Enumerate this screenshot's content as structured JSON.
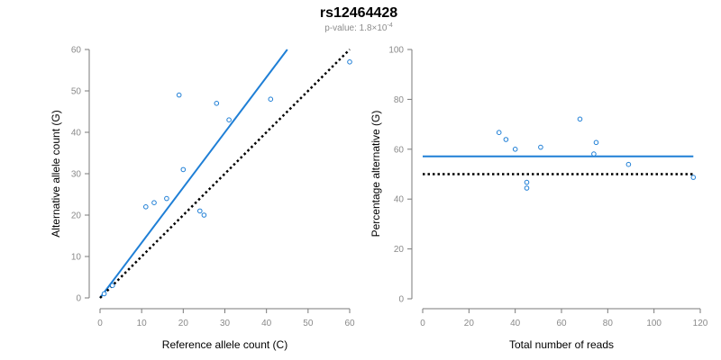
{
  "figure": {
    "title": "rs12464428",
    "subtitle_prefix": "p-value: 1.8×10",
    "subtitle_exponent": "-4",
    "colors": {
      "accent": "#1f7fd6",
      "reference": "#000000",
      "axis": "#7a7a7a",
      "tick_text": "#8a8a8a"
    }
  },
  "chart_data": [
    {
      "type": "scatter",
      "name": "allele-counts",
      "title": "",
      "xlabel": "Reference allele count (C)",
      "ylabel": "Alternative allele count (G)",
      "xlim": [
        0,
        60
      ],
      "ylim": [
        0,
        60
      ],
      "xticks": [
        0,
        10,
        20,
        30,
        40,
        50,
        60
      ],
      "yticks": [
        0,
        10,
        20,
        30,
        40,
        50,
        60
      ],
      "grid": false,
      "points": [
        {
          "x": 1,
          "y": 1
        },
        {
          "x": 3,
          "y": 3
        },
        {
          "x": 11,
          "y": 22
        },
        {
          "x": 13,
          "y": 23
        },
        {
          "x": 16,
          "y": 24
        },
        {
          "x": 19,
          "y": 49
        },
        {
          "x": 20,
          "y": 31
        },
        {
          "x": 24,
          "y": 21
        },
        {
          "x": 25,
          "y": 20
        },
        {
          "x": 28,
          "y": 47
        },
        {
          "x": 31,
          "y": 43
        },
        {
          "x": 41,
          "y": 48
        },
        {
          "x": 60,
          "y": 57
        }
      ],
      "lines": [
        {
          "name": "fitted",
          "style": "solid",
          "color": "#1f7fd6",
          "x": [
            0,
            45
          ],
          "y": [
            0,
            60
          ]
        },
        {
          "name": "expected",
          "style": "dotted",
          "color": "#000000",
          "x": [
            0,
            60
          ],
          "y": [
            0,
            60
          ]
        }
      ]
    },
    {
      "type": "scatter",
      "name": "percentage-alternative",
      "title": "",
      "xlabel": "Total number of reads",
      "ylabel": "Percentage alternative (G)",
      "xlim": [
        0,
        120
      ],
      "ylim": [
        0,
        100
      ],
      "xticks": [
        0,
        20,
        40,
        60,
        80,
        100,
        120
      ],
      "yticks": [
        0,
        20,
        40,
        60,
        80,
        100
      ],
      "grid": false,
      "points": [
        {
          "x": 33,
          "y": 66.7
        },
        {
          "x": 36,
          "y": 63.9
        },
        {
          "x": 40,
          "y": 60
        },
        {
          "x": 45,
          "y": 46.7
        },
        {
          "x": 45,
          "y": 44.4
        },
        {
          "x": 51,
          "y": 60.8
        },
        {
          "x": 68,
          "y": 72.1
        },
        {
          "x": 74,
          "y": 58.1
        },
        {
          "x": 75,
          "y": 62.7
        },
        {
          "x": 89,
          "y": 53.9
        },
        {
          "x": 117,
          "y": 48.7
        }
      ],
      "lines": [
        {
          "name": "fitted",
          "style": "solid",
          "color": "#1f7fd6",
          "x": [
            0,
            117
          ],
          "y": [
            57.1,
            57.1
          ]
        },
        {
          "name": "expected",
          "style": "dotted",
          "color": "#000000",
          "x": [
            0,
            117
          ],
          "y": [
            50,
            50
          ]
        }
      ]
    }
  ]
}
